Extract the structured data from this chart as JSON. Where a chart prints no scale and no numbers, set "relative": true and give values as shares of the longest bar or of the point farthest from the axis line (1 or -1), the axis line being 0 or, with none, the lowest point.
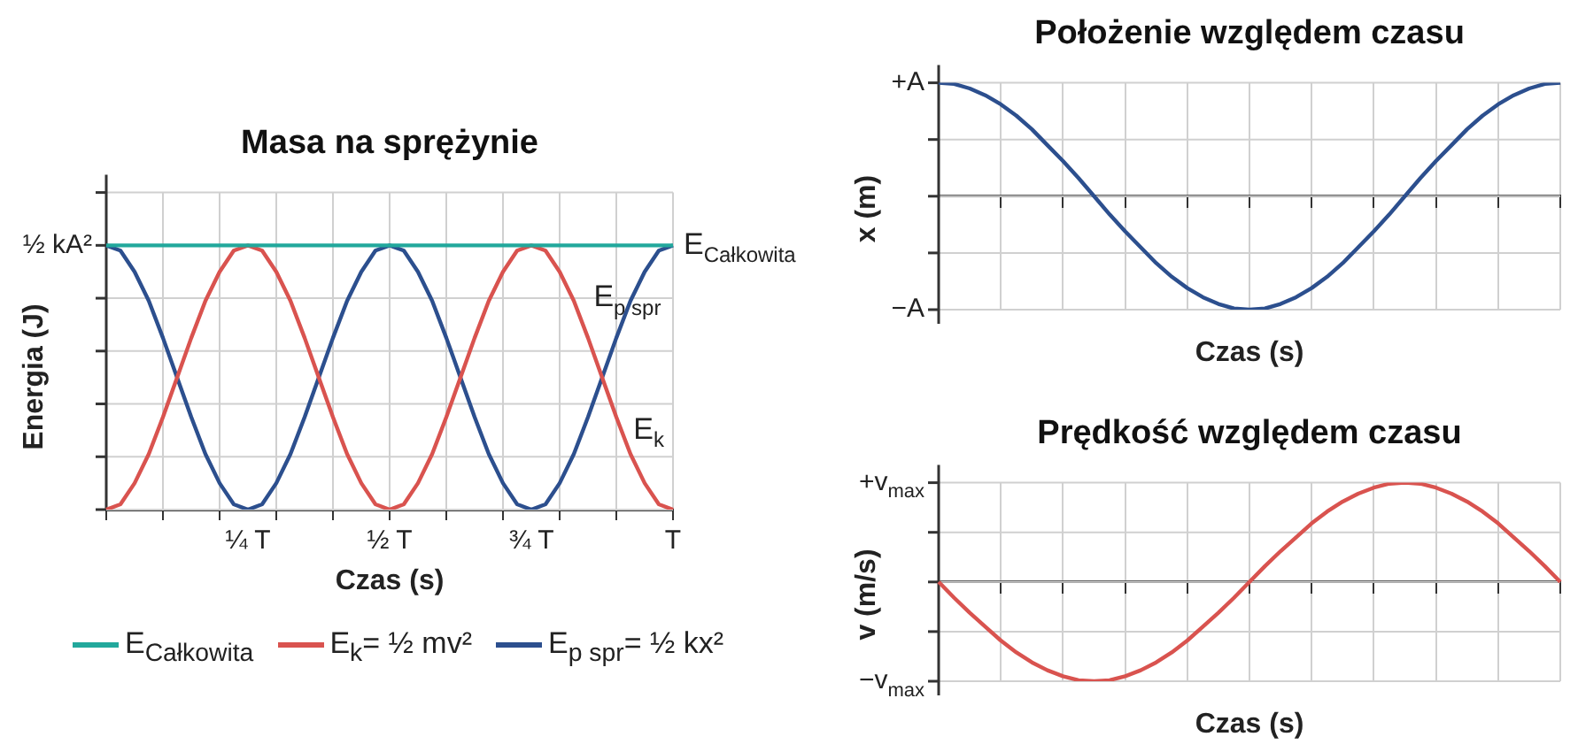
{
  "chart_data": [
    {
      "type": "line",
      "title": "Masa na sprężynie",
      "xlabel": "Czas (s)",
      "ylabel": "Energia (J)",
      "relative": true,
      "categories": [
        null,
        null,
        null,
        null,
        null,
        null,
        null,
        null,
        null,
        null,
        "¼ T",
        null,
        null,
        null,
        null,
        null,
        null,
        null,
        null,
        null,
        "½ T",
        null,
        null,
        null,
        null,
        null,
        null,
        null,
        null,
        null,
        "¾ T",
        null,
        null,
        null,
        null,
        null,
        null,
        null,
        null,
        null,
        "T"
      ],
      "series": [
        {
          "name": "E$_{Całkowita}$",
          "color": "#22a89c",
          "values": [
            1,
            1,
            1,
            1,
            1,
            1,
            1,
            1,
            1,
            1,
            1,
            1,
            1,
            1,
            1,
            1,
            1,
            1,
            1,
            1,
            1,
            1,
            1,
            1,
            1,
            1,
            1,
            1,
            1,
            1,
            1,
            1,
            1,
            1,
            1,
            1,
            1,
            1,
            1,
            1,
            1
          ]
        },
        {
          "name": "E$_{k}$= ½ mv²",
          "color": "#d9534f",
          "values": [
            0,
            0.02,
            0.1,
            0.21,
            0.35,
            0.5,
            0.65,
            0.79,
            0.9,
            0.98,
            1,
            0.98,
            0.9,
            0.79,
            0.65,
            0.5,
            0.35,
            0.21,
            0.1,
            0.02,
            0,
            0.02,
            0.1,
            0.21,
            0.35,
            0.5,
            0.65,
            0.79,
            0.9,
            0.98,
            1,
            0.98,
            0.9,
            0.79,
            0.65,
            0.5,
            0.35,
            0.21,
            0.1,
            0.02,
            0
          ]
        },
        {
          "name": "E$_{p spr}$= ½ kx²",
          "color": "#2c4f8e",
          "values": [
            1,
            0.98,
            0.9,
            0.79,
            0.65,
            0.5,
            0.35,
            0.21,
            0.1,
            0.02,
            0,
            0.02,
            0.1,
            0.21,
            0.35,
            0.5,
            0.65,
            0.79,
            0.9,
            0.98,
            1,
            0.98,
            0.9,
            0.79,
            0.65,
            0.5,
            0.35,
            0.21,
            0.1,
            0.02,
            0,
            0.02,
            0.1,
            0.21,
            0.35,
            0.5,
            0.65,
            0.79,
            0.9,
            0.98,
            1
          ]
        }
      ],
      "annotations": [
        "½ kA²",
        "E$_{Całkowita}$",
        "E$_{p spr}$",
        "E$_{k}$"
      ],
      "grid": true,
      "legend": "bottom",
      "marker": "none",
      "line_style": "solid"
    },
    {
      "type": "line",
      "title": "Położenie względem czasu",
      "xlabel": "Czas (s)",
      "ylabel": "x (m)",
      "relative": true,
      "categories": [
        null,
        null,
        null,
        null,
        null,
        null,
        null,
        null,
        null,
        null,
        null,
        null,
        null,
        null,
        null,
        null,
        null,
        null,
        null,
        null,
        null,
        null,
        null,
        null,
        null,
        null,
        null,
        null,
        null,
        null,
        null,
        null,
        null,
        null,
        null,
        null,
        null,
        null,
        null,
        null,
        null
      ],
      "series": [
        {
          "color": "#2c4f8e",
          "values": [
            1,
            0.99,
            0.95,
            0.89,
            0.81,
            0.71,
            0.59,
            0.45,
            0.31,
            0.16,
            0,
            -0.16,
            -0.31,
            -0.45,
            -0.59,
            -0.71,
            -0.81,
            -0.89,
            -0.95,
            -0.99,
            -1,
            -0.99,
            -0.95,
            -0.89,
            -0.81,
            -0.71,
            -0.59,
            -0.45,
            -0.31,
            -0.16,
            0,
            0.16,
            0.31,
            0.45,
            0.59,
            0.71,
            0.81,
            0.89,
            0.95,
            0.99,
            1
          ]
        }
      ],
      "annotations": [
        "+A",
        "−A"
      ],
      "grid": true,
      "marker": "none",
      "line_style": "solid"
    },
    {
      "type": "line",
      "title": "Prędkość względem czasu",
      "xlabel": "Czas (s)",
      "ylabel": "v (m/s)",
      "relative": true,
      "categories": [
        null,
        null,
        null,
        null,
        null,
        null,
        null,
        null,
        null,
        null,
        null,
        null,
        null,
        null,
        null,
        null,
        null,
        null,
        null,
        null,
        null,
        null,
        null,
        null,
        null,
        null,
        null,
        null,
        null,
        null,
        null,
        null,
        null,
        null,
        null,
        null,
        null,
        null,
        null,
        null,
        null
      ],
      "series": [
        {
          "color": "#d9534f",
          "values": [
            0,
            -0.16,
            -0.31,
            -0.45,
            -0.59,
            -0.71,
            -0.81,
            -0.89,
            -0.95,
            -0.99,
            -1,
            -0.99,
            -0.95,
            -0.89,
            -0.81,
            -0.71,
            -0.59,
            -0.45,
            -0.31,
            -0.16,
            0,
            0.16,
            0.31,
            0.45,
            0.59,
            0.71,
            0.81,
            0.89,
            0.95,
            0.99,
            1,
            0.99,
            0.95,
            0.89,
            0.81,
            0.71,
            0.59,
            0.45,
            0.31,
            0.16,
            0
          ]
        }
      ],
      "annotations": [
        "+v$_{max}$",
        "−v$_{max}$"
      ],
      "grid": true,
      "marker": "none",
      "line_style": "solid"
    }
  ]
}
